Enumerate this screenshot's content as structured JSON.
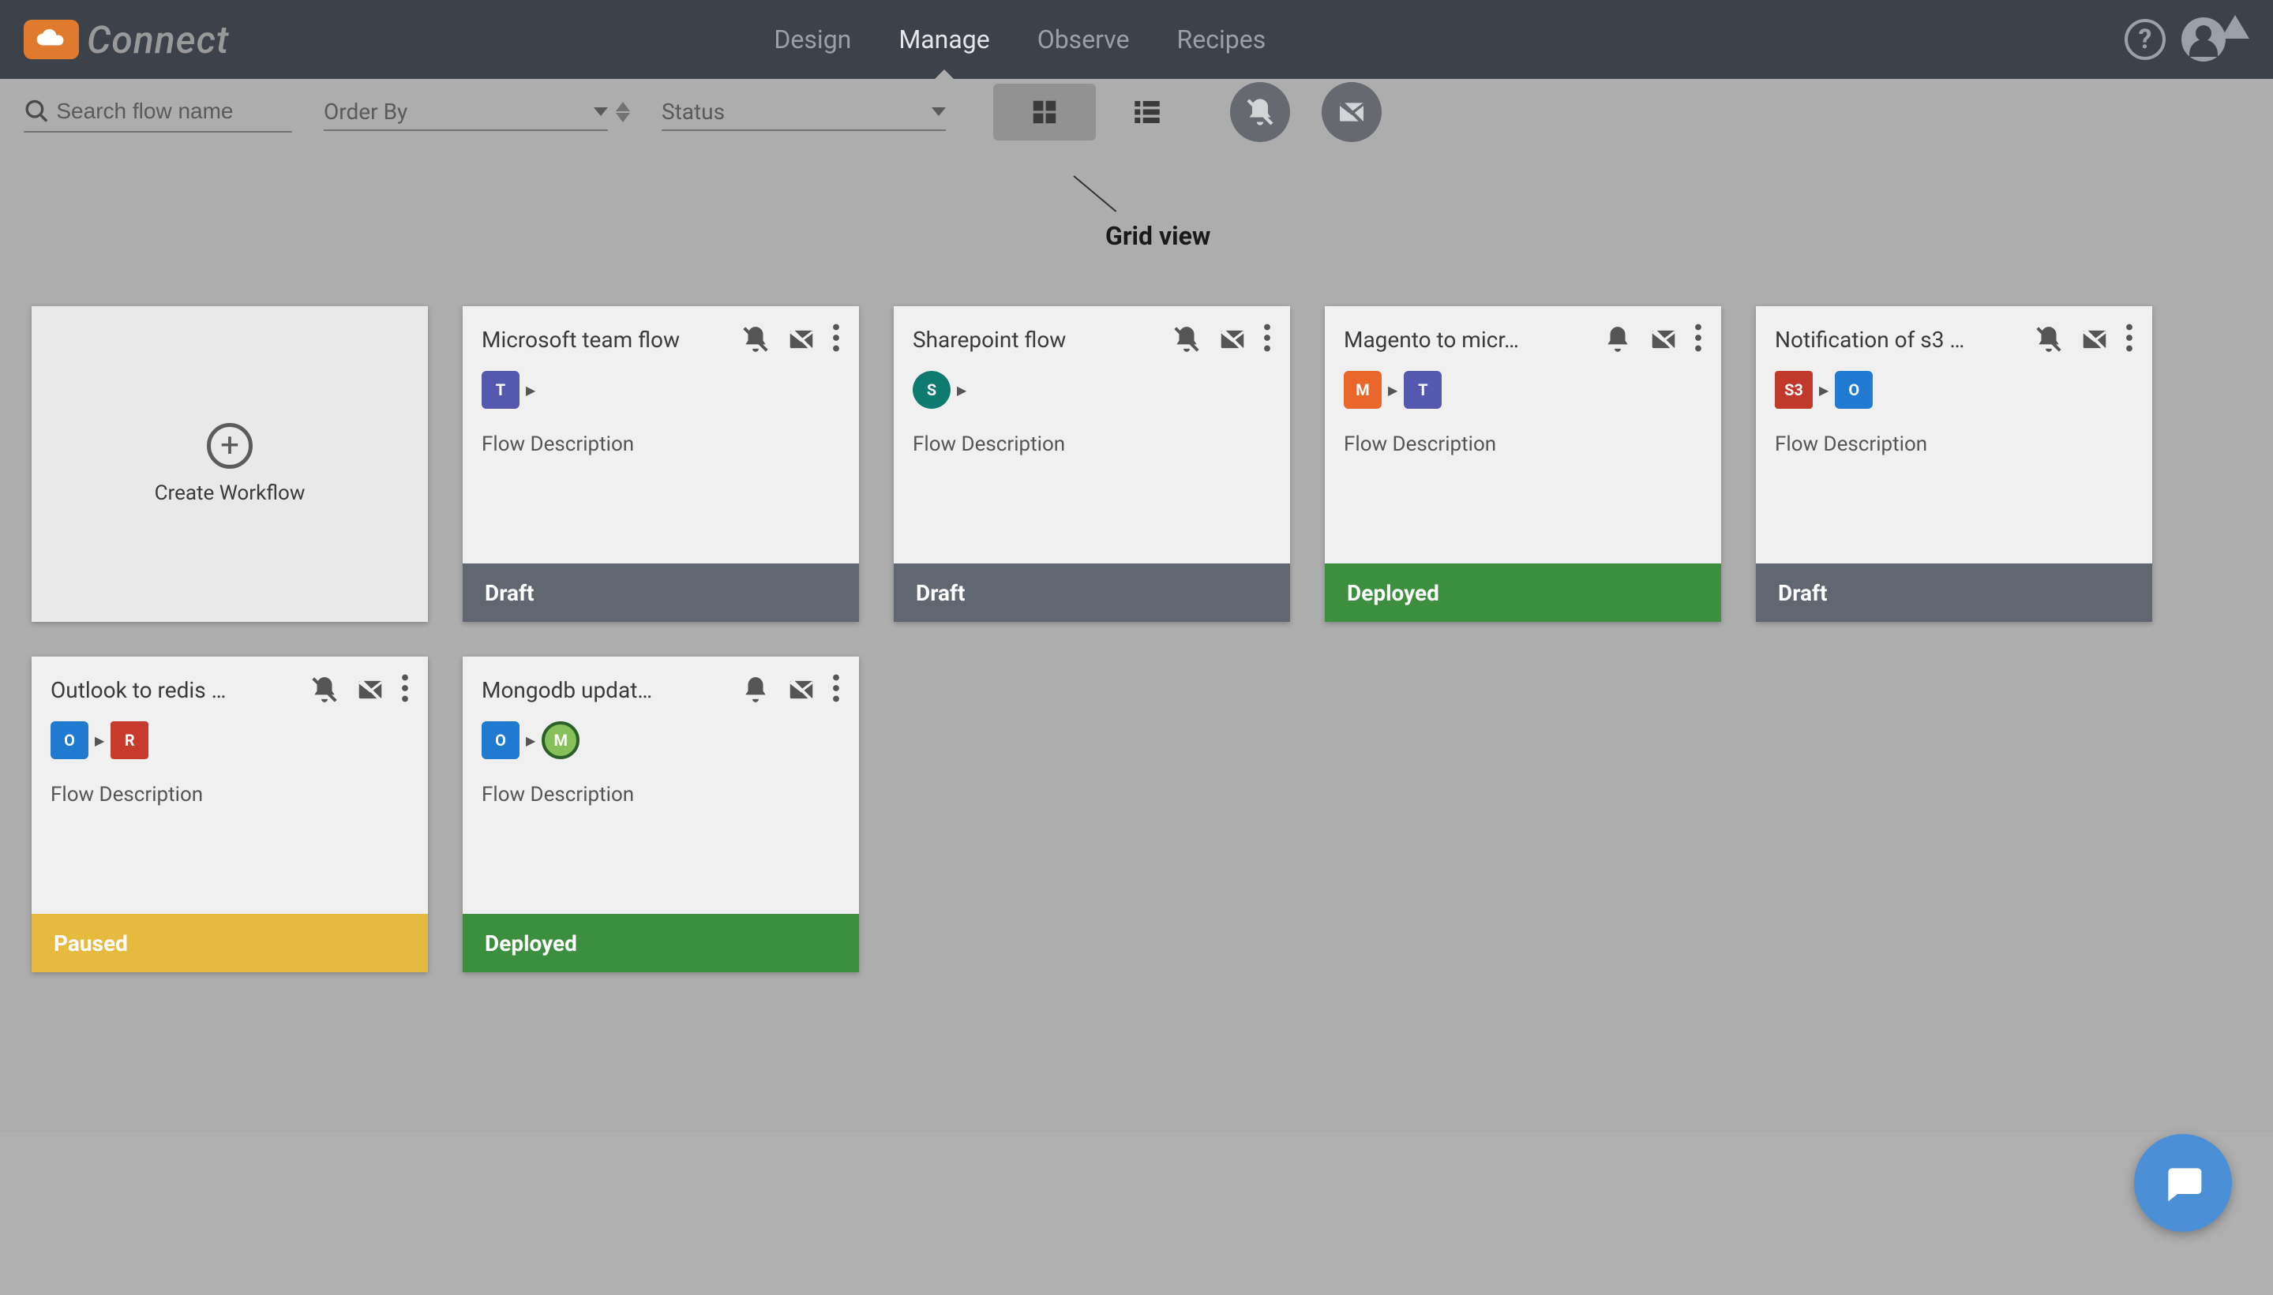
{
  "brand": {
    "name": "Connect"
  },
  "nav": {
    "tabs": [
      {
        "label": "Design",
        "active": false
      },
      {
        "label": "Manage",
        "active": true
      },
      {
        "label": "Observe",
        "active": false
      },
      {
        "label": "Recipes",
        "active": false
      }
    ]
  },
  "filters": {
    "search_placeholder": "Search flow name",
    "order_by_label": "Order By",
    "status_label": "Status"
  },
  "tooltip": {
    "grid_view": "Grid view"
  },
  "create_card": {
    "label": "Create Workflow"
  },
  "status_colors": {
    "Draft": "#616771",
    "Deployed": "#3b8f3e",
    "Paused": "#e6b93f"
  },
  "icon_palette": {
    "teams": "#5558af",
    "sharepoint": "#0f7a6f",
    "magento": "#e9672b",
    "s3": "#c0392b",
    "outlook": "#1f7ad0",
    "redis": "#c63b2c",
    "mongodb": "#3f8d3a"
  },
  "cards": [
    {
      "title": "Microsoft team flow",
      "description": "Flow Description",
      "status": "Draft",
      "bell_muted": true,
      "icons": [
        "teams"
      ]
    },
    {
      "title": "Sharepoint flow",
      "description": "Flow Description",
      "status": "Draft",
      "bell_muted": true,
      "icons": [
        "sharepoint"
      ]
    },
    {
      "title": "Magento to micr…",
      "description": "Flow Description",
      "status": "Deployed",
      "bell_muted": false,
      "icons": [
        "magento",
        "teams"
      ]
    },
    {
      "title": "Notification of s3 …",
      "description": "Flow Description",
      "status": "Draft",
      "bell_muted": true,
      "icons": [
        "s3",
        "outlook"
      ]
    },
    {
      "title": "Outlook to redis …",
      "description": "Flow Description",
      "status": "Paused",
      "bell_muted": true,
      "icons": [
        "outlook",
        "redis"
      ]
    },
    {
      "title": "Mongodb updat…",
      "description": "Flow Description",
      "status": "Deployed",
      "bell_muted": false,
      "icons": [
        "outlook",
        "mongodb"
      ]
    }
  ]
}
